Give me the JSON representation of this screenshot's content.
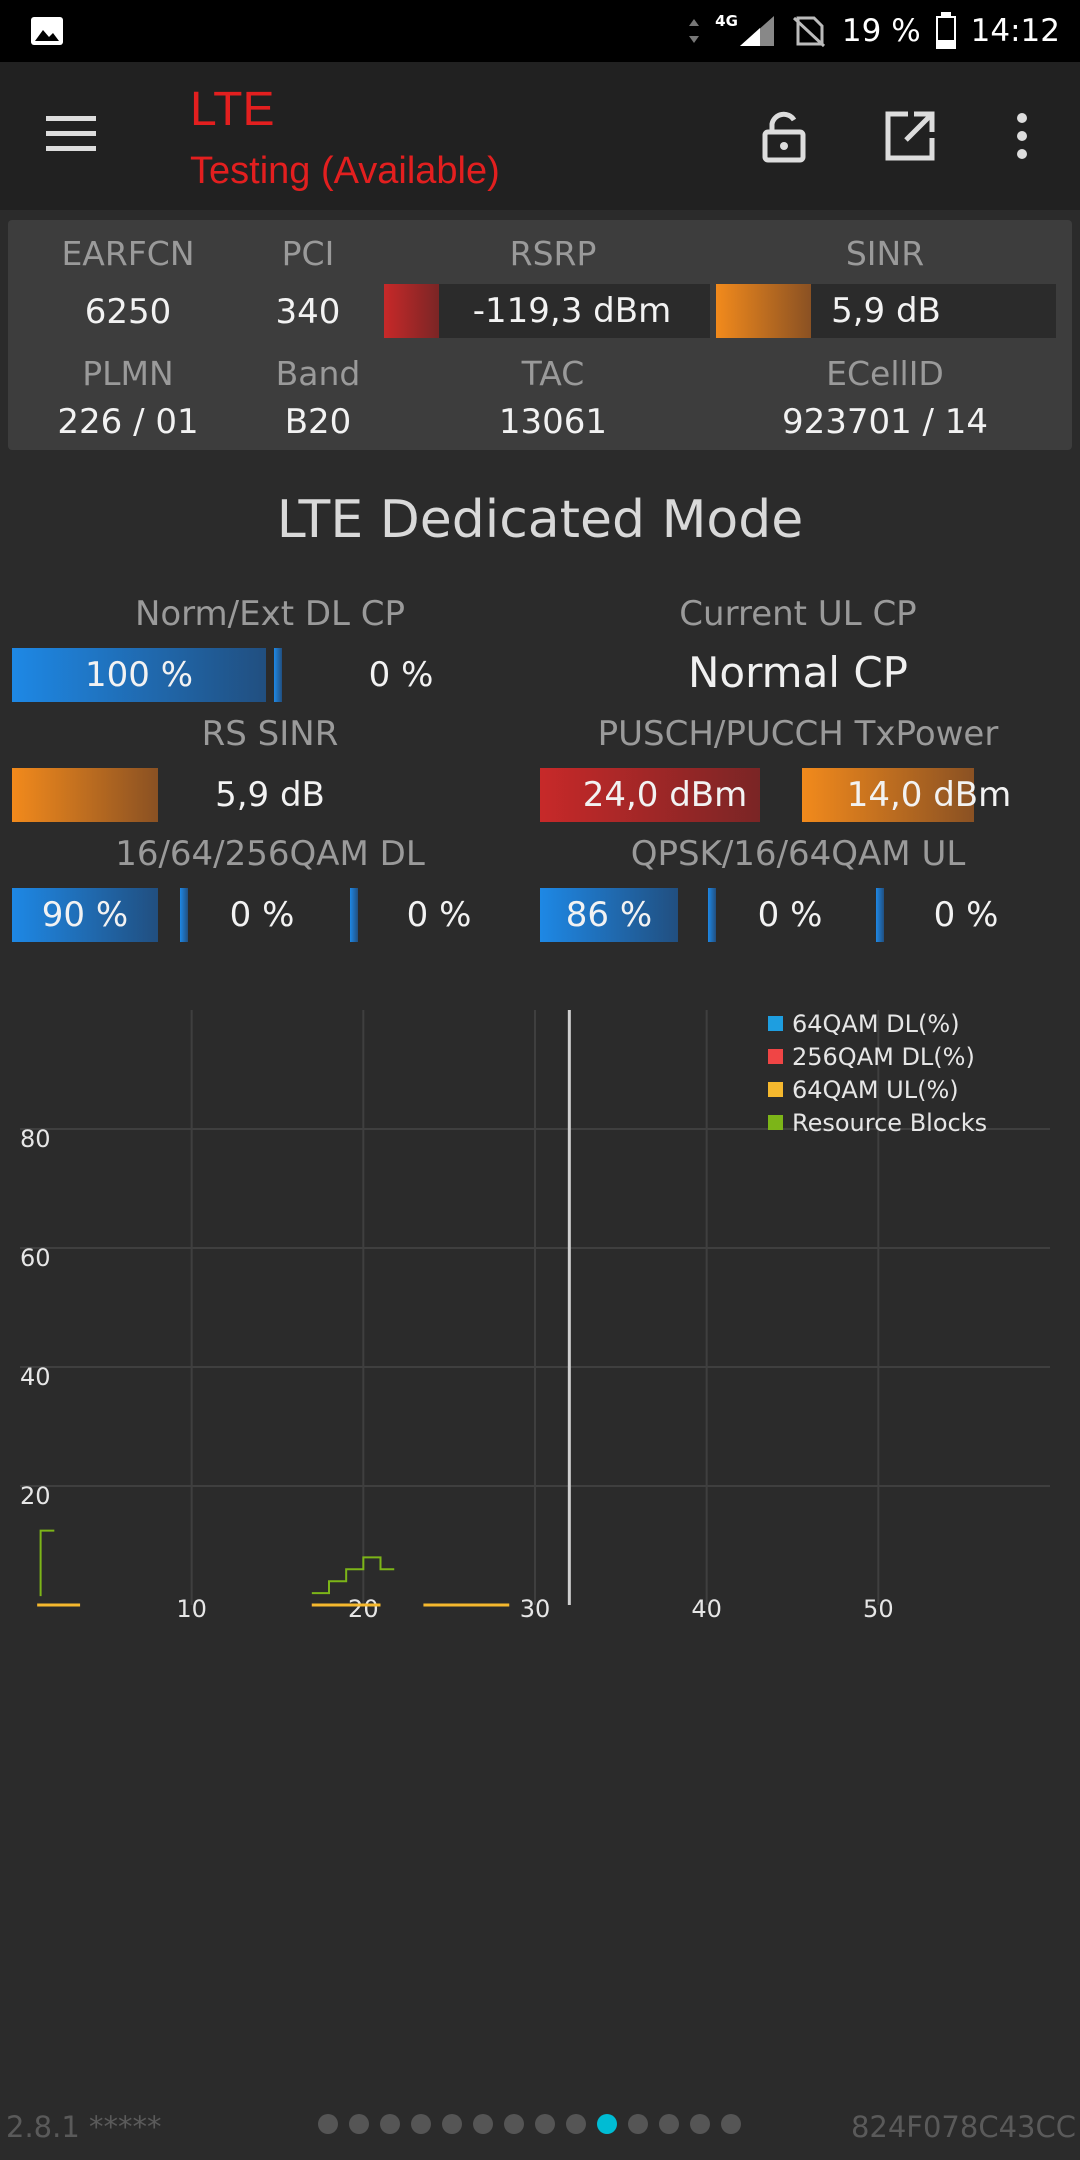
{
  "status_bar": {
    "network": "4G",
    "battery": "19 %",
    "time": "14:12"
  },
  "toolbar": {
    "title": "LTE",
    "subtitle": "Testing (Available)"
  },
  "cell": {
    "earfcn_label": "EARFCN",
    "earfcn": "6250",
    "pci_label": "PCI",
    "pci": "340",
    "rsrp_label": "RSRP",
    "rsrp": "-119,3 dBm",
    "rsrp_level": 0.17,
    "sinr_label": "SINR",
    "sinr": "5,9 dB",
    "sinr_level": 0.28,
    "plmn_label": "PLMN",
    "plmn": "226 / 01",
    "band_label": "Band",
    "band": "B20",
    "tac_label": "TAC",
    "tac": "13061",
    "ecellid_label": "ECellID",
    "ecellid": "923701 / 14"
  },
  "dedicated": {
    "title": "LTE Dedicated Mode",
    "dl_cp_label": "Norm/Ext DL CP",
    "dl_cp_norm": "100 %",
    "dl_cp_ext": "0 %",
    "ul_cp_label": "Current UL CP",
    "ul_cp": "Normal CP",
    "rs_sinr_label": "RS SINR",
    "rs_sinr": "5,9 dB",
    "txpower_label": "PUSCH/PUCCH TxPower",
    "pusch": "24,0 dBm",
    "pucch": "14,0 dBm",
    "qam_dl_label": "16/64/256QAM DL",
    "qam_dl": [
      "90 %",
      "0 %",
      "0 %"
    ],
    "qam_ul_label": "QPSK/16/64QAM UL",
    "qam_ul": [
      "86 %",
      "0 %",
      "0 %"
    ]
  },
  "chart_data": {
    "type": "line",
    "xlim": [
      0,
      60
    ],
    "ylim": [
      0,
      100
    ],
    "x_ticks": [
      "10",
      "20",
      "30",
      "40",
      "50"
    ],
    "y_ticks": [
      "80",
      "60",
      "40",
      "20"
    ],
    "grid": true,
    "legend_position": "top-right",
    "cursor_x": 32,
    "series": [
      {
        "name": "64QAM DL(%)",
        "color": "#1e9ee0",
        "points": []
      },
      {
        "name": "256QAM DL(%)",
        "color": "#f04545",
        "points": [
          [
            17,
            0
          ],
          [
            21,
            0
          ]
        ]
      },
      {
        "name": "64QAM UL(%)",
        "color": "#f5b82e",
        "points": [
          [
            1,
            0
          ],
          [
            3.5,
            0
          ],
          [
            17,
            0
          ],
          [
            21,
            0
          ],
          [
            23.5,
            0
          ],
          [
            28.5,
            0
          ]
        ]
      },
      {
        "name": "Resource Blocks",
        "color": "#7cb518",
        "points": [
          [
            1.2,
            1.5
          ],
          [
            1.2,
            12.5
          ],
          [
            2,
            12.5
          ],
          [
            17,
            2
          ],
          [
            18,
            2
          ],
          [
            18,
            4
          ],
          [
            19,
            4
          ],
          [
            19,
            6
          ],
          [
            20,
            6
          ],
          [
            20,
            8
          ],
          [
            21,
            8
          ],
          [
            21,
            6
          ],
          [
            21.8,
            6
          ]
        ]
      }
    ]
  },
  "footer": {
    "version": "2.8.1 *****",
    "device_id": "824F078C43CC",
    "pages": 14,
    "active_page": 10
  }
}
